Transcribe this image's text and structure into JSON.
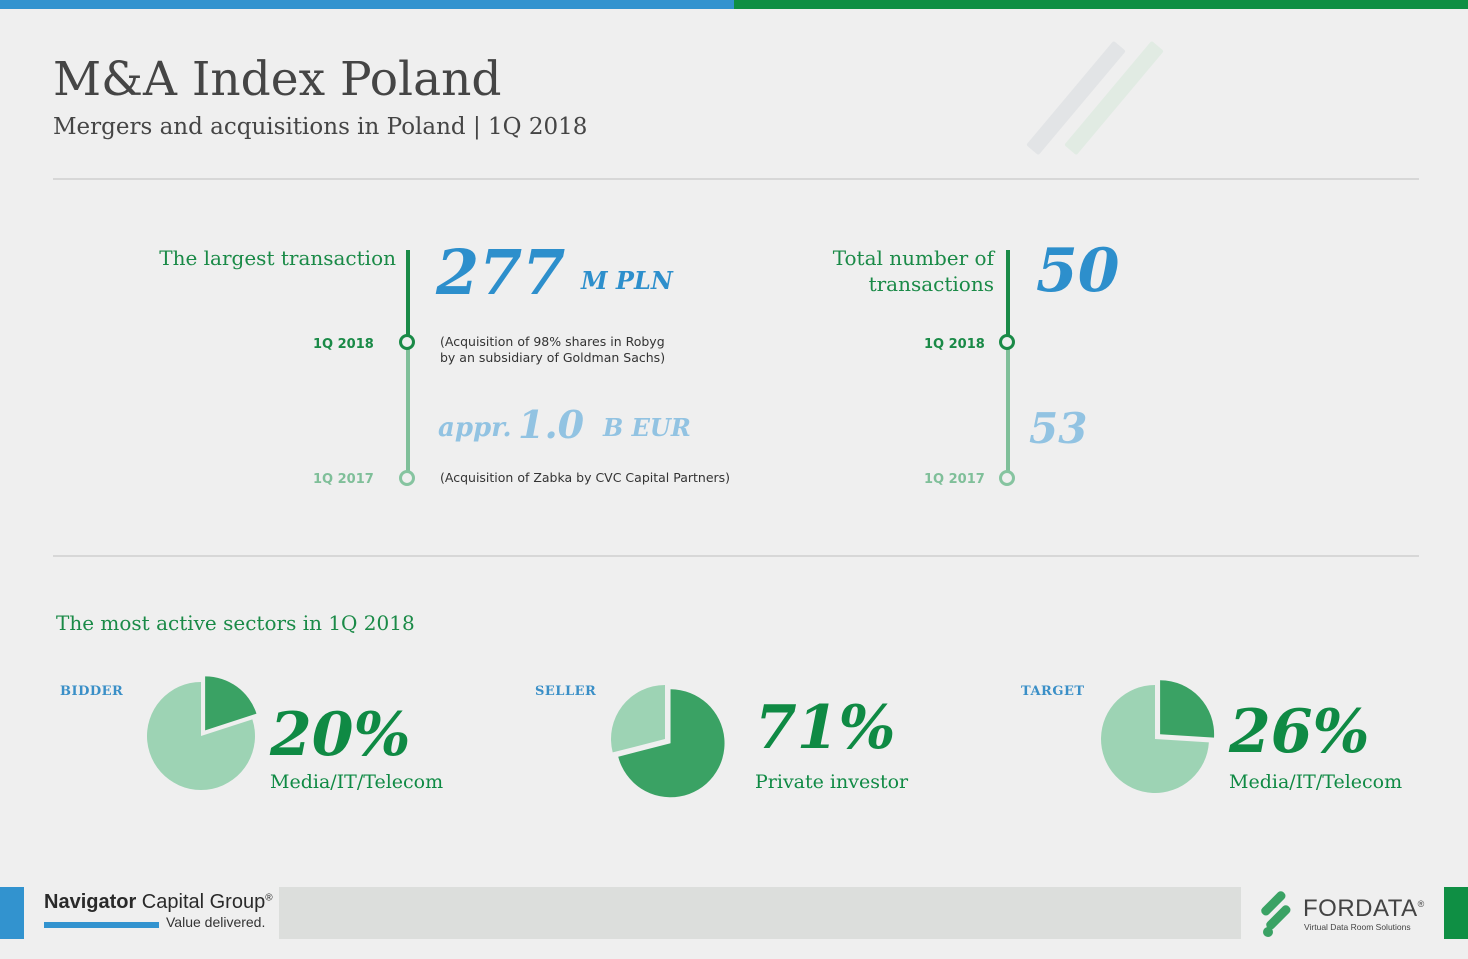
{
  "header": {
    "title": "M&A Index Poland",
    "subtitle": "Mergers and acquisitions in Poland | 1Q 2018"
  },
  "largest": {
    "label": "The largest transaction",
    "current_value": "277",
    "current_unit": "M PLN",
    "current_period": "1Q 2018",
    "current_note_1": "(Acquisition of 98% shares in Robyg",
    "current_note_2": "by an subsidiary of Goldman Sachs)",
    "prev_prefix": "appr.",
    "prev_value": "1.0",
    "prev_unit": "B EUR",
    "prev_period": "1Q 2017",
    "prev_note": "(Acquisition of Zabka by CVC Capital Partners)"
  },
  "total": {
    "label_1": "Total number of",
    "label_2": "transactions",
    "current_value": "50",
    "current_period": "1Q 2018",
    "prev_value": "53",
    "prev_period": "1Q 2017"
  },
  "sectors": {
    "heading": "The most active sectors in 1Q 2018",
    "items": [
      {
        "kind": "BIDDER",
        "percent_label": "20%",
        "percent": 20,
        "name": "Media/IT/Telecom"
      },
      {
        "kind": "SELLER",
        "percent_label": "71%",
        "percent": 71,
        "name": "Private investor"
      },
      {
        "kind": "TARGET",
        "percent_label": "26%",
        "percent": 26,
        "name": "Media/IT/Telecom"
      }
    ]
  },
  "footer": {
    "left_brand_bold": "Navigator",
    "left_brand_rest": " Capital Group",
    "left_brand_mark": "®",
    "left_tagline": "Value delivered.",
    "right_brand": "FORDATA",
    "right_brand_mark": "®",
    "right_tagline": "Virtual Data Room Solutions"
  },
  "colors": {
    "blue": "#3293cf",
    "green": "#0f8f44",
    "pie_dark": "#3aa264",
    "pie_light": "#9dd3b4"
  }
}
